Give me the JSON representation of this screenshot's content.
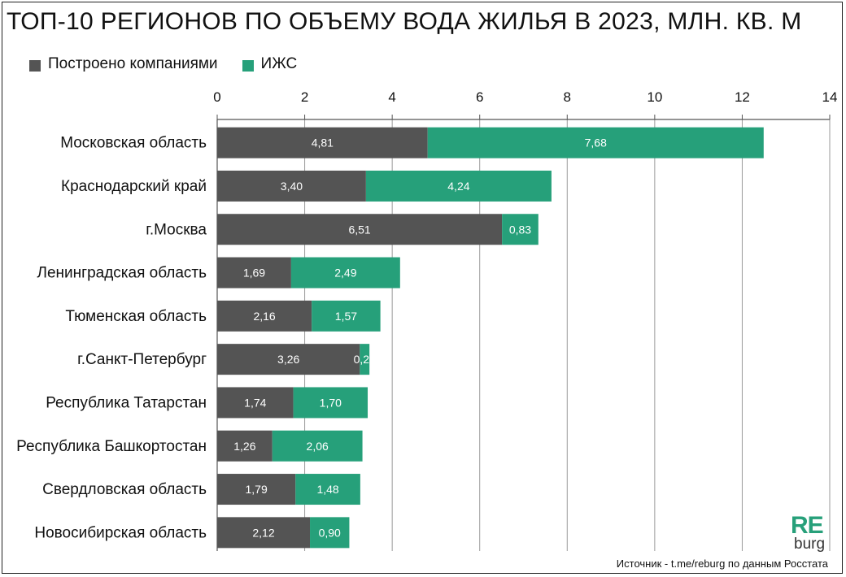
{
  "chart_data": {
    "type": "bar",
    "orientation": "horizontal",
    "stacked": true,
    "title": "ТОП-10 РЕГИОНОВ ПО ОБЪЕМУ ВОДА  ЖИЛЬЯ В 2023, МЛН. КВ. М",
    "categories": [
      "Московская область",
      "Краснодарский край",
      "г.Москва",
      "Ленинградская область",
      "Тюменская область",
      "г.Санкт-Петербург",
      "Республика Татарстан",
      "Республика Башкортостан",
      "Свердловская область",
      "Новосибирская область"
    ],
    "series": [
      {
        "name": "Построено компаниями",
        "color": "#545454",
        "values": [
          4.81,
          3.4,
          6.51,
          1.69,
          2.16,
          3.26,
          1.74,
          1.26,
          1.79,
          2.12
        ],
        "labels": [
          "4,81",
          "3,40",
          "6,51",
          "1,69",
          "2,16",
          "3,26",
          "1,74",
          "1,26",
          "1,79",
          "2,12"
        ]
      },
      {
        "name": "ИЖС",
        "color": "#26a07a",
        "values": [
          7.68,
          4.24,
          0.83,
          2.49,
          1.57,
          0.22,
          1.7,
          2.06,
          1.48,
          0.9
        ],
        "labels": [
          "7,68",
          "4,24",
          "0,83",
          "2,49",
          "1,57",
          "0,22",
          "1,70",
          "2,06",
          "1,48",
          "0,90"
        ]
      }
    ],
    "xlim": [
      0,
      14
    ],
    "xticks": [
      0,
      2,
      4,
      6,
      8,
      10,
      12,
      14
    ],
    "xtick_labels": [
      "0",
      "2",
      "4",
      "6",
      "8",
      "10",
      "12",
      "14"
    ],
    "x_axis_position": "top",
    "grid": true,
    "legend_position": "top-left"
  },
  "branding": {
    "logo_top": "RE",
    "logo_bottom": "burg"
  },
  "source_note": "Источник - t.me/reburg по данным Росстата"
}
